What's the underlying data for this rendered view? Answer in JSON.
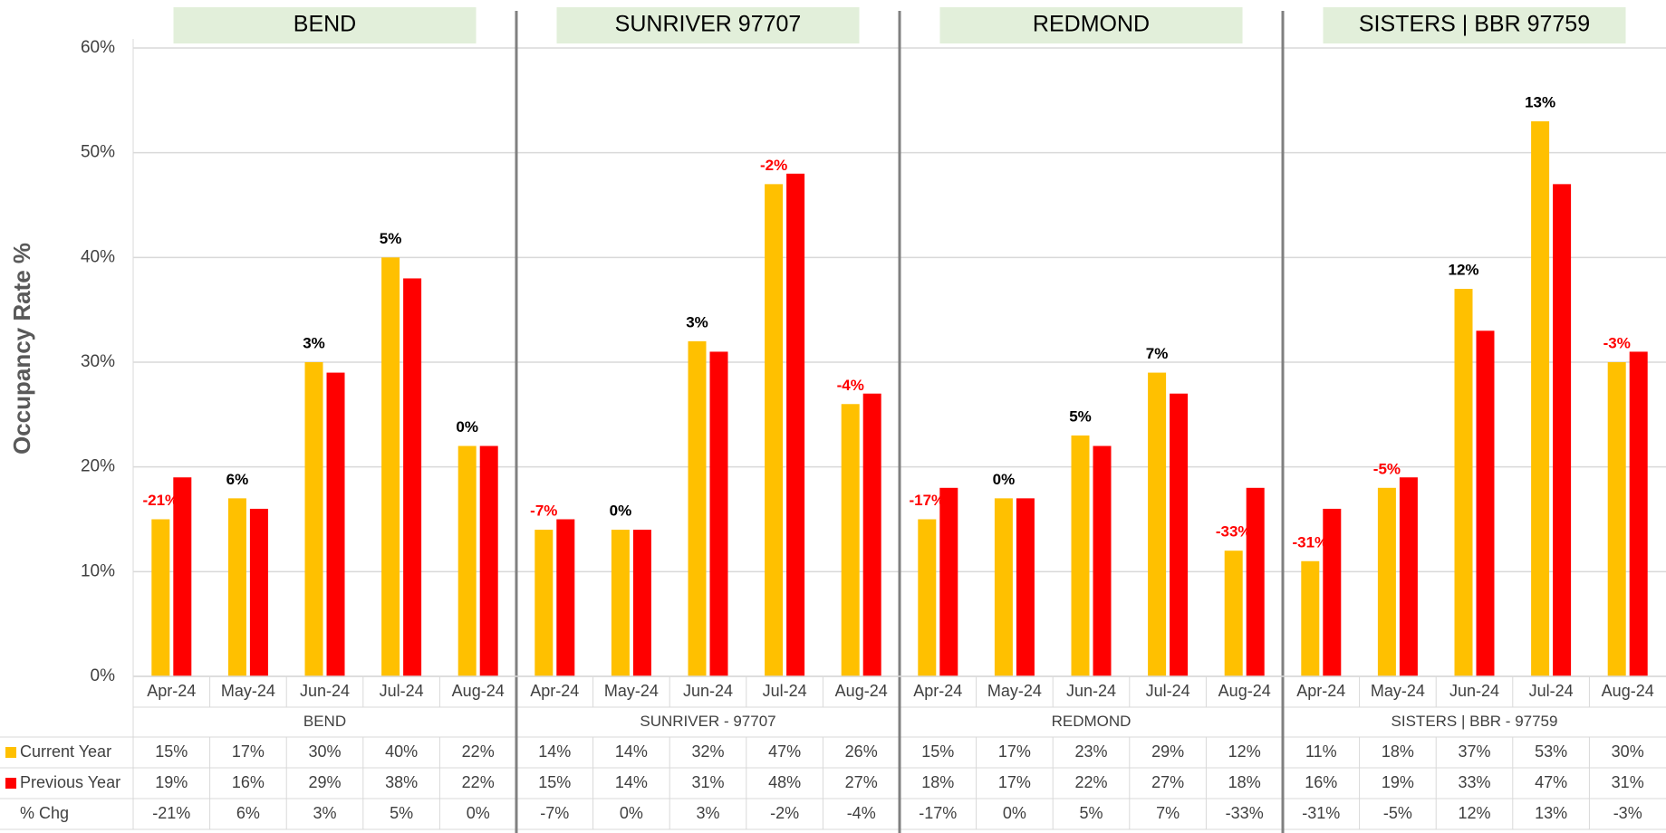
{
  "chart_data": {
    "type": "bar",
    "y_label": "Occupancy Rate %",
    "ylim": [
      0,
      60
    ],
    "yticks": [
      {
        "value": 0,
        "label": "0%"
      },
      {
        "value": 10,
        "label": "10%"
      },
      {
        "value": 20,
        "label": "20%"
      },
      {
        "value": 30,
        "label": "30%"
      },
      {
        "value": 40,
        "label": "40%"
      },
      {
        "value": 50,
        "label": "50%"
      },
      {
        "value": 60,
        "label": "60%"
      }
    ],
    "grid": true,
    "panels": [
      {
        "title": "BEND",
        "group_label": "BEND",
        "categories": [
          "Apr-24",
          "May-24",
          "Jun-24",
          "Jul-24",
          "Aug-24"
        ]
      },
      {
        "title": "SUNRIVER 97707",
        "group_label": "SUNRIVER - 97707",
        "categories": [
          "Apr-24",
          "May-24",
          "Jun-24",
          "Jul-24",
          "Aug-24"
        ]
      },
      {
        "title": "REDMOND",
        "group_label": "REDMOND",
        "categories": [
          "Apr-24",
          "May-24",
          "Jun-24",
          "Jul-24",
          "Aug-24"
        ]
      },
      {
        "title": "SISTERS | BBR 97759",
        "group_label": "SISTERS | BBR - 97759",
        "categories": [
          "Apr-24",
          "May-24",
          "Jun-24",
          "Jul-24",
          "Aug-24"
        ]
      }
    ],
    "series": [
      {
        "name": "Current Year",
        "color": "#ffc000",
        "values": [
          15,
          17,
          30,
          40,
          22,
          14,
          14,
          32,
          47,
          26,
          15,
          17,
          23,
          29,
          12,
          11,
          18,
          37,
          53,
          30
        ],
        "value_labels": [
          "15%",
          "17%",
          "30%",
          "40%",
          "22%",
          "14%",
          "14%",
          "32%",
          "47%",
          "26%",
          "15%",
          "17%",
          "23%",
          "29%",
          "12%",
          "11%",
          "18%",
          "37%",
          "53%",
          "30%"
        ]
      },
      {
        "name": "Previous Year",
        "color": "#ff0000",
        "values": [
          19,
          16,
          29,
          38,
          22,
          15,
          14,
          31,
          48,
          27,
          18,
          17,
          22,
          27,
          18,
          16,
          19,
          33,
          47,
          31
        ],
        "value_labels": [
          "19%",
          "16%",
          "29%",
          "38%",
          "22%",
          "15%",
          "14%",
          "31%",
          "48%",
          "27%",
          "18%",
          "17%",
          "22%",
          "27%",
          "18%",
          "16%",
          "19%",
          "33%",
          "47%",
          "31%"
        ]
      }
    ],
    "change": {
      "name": "% Chg",
      "values": [
        -21,
        6,
        3,
        5,
        0,
        -7,
        0,
        3,
        -2,
        -4,
        -17,
        0,
        5,
        7,
        -33,
        -31,
        -5,
        12,
        13,
        -3
      ],
      "value_labels": [
        "-21%",
        "6%",
        "3%",
        "5%",
        "0%",
        "-7%",
        "0%",
        "3%",
        "-2%",
        "-4%",
        "-17%",
        "0%",
        "5%",
        "7%",
        "-33%",
        "-31%",
        "-5%",
        "12%",
        "13%",
        "-3%"
      ]
    }
  }
}
